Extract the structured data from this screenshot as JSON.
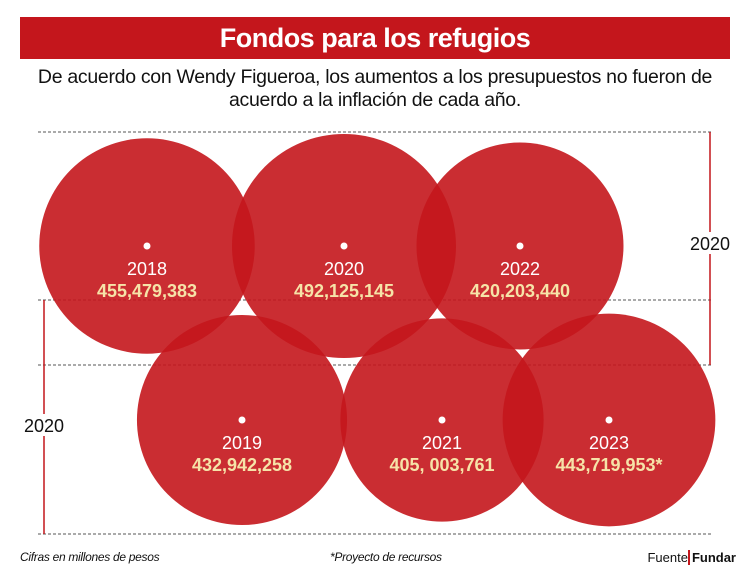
{
  "title": "Fondos para los refugios",
  "subtitle": "De acuerdo con Wendy Figueroa, los aumentos a los presupuestos no fueron de acuerdo a la inflación de cada año.",
  "footer": {
    "note_units": "Cifras en millones de pesos",
    "note_asterisk": "*Proyecto de recursos",
    "source_label": "Fuente",
    "source_name": "Fundar"
  },
  "colors": {
    "accent": "#c4161c",
    "value_text": "#f6e3a8"
  },
  "chart_data": {
    "type": "bubble",
    "title": "Fondos para los refugios",
    "row_labels": [
      "2020",
      "2020"
    ],
    "bubbles": [
      {
        "year": "2018",
        "label": "455,479,383",
        "value": 455479383
      },
      {
        "year": "2020",
        "label": "492,125,145",
        "value": 492125145
      },
      {
        "year": "2022",
        "label": "420,203,440",
        "value": 420203440
      },
      {
        "year": "2019",
        "label": "432,942,258",
        "value": 432942258
      },
      {
        "year": "2021",
        "label": "405, 003,761",
        "value": 405003761
      },
      {
        "year": "2023",
        "label": "443,719,953*",
        "value": 443719953
      }
    ]
  }
}
